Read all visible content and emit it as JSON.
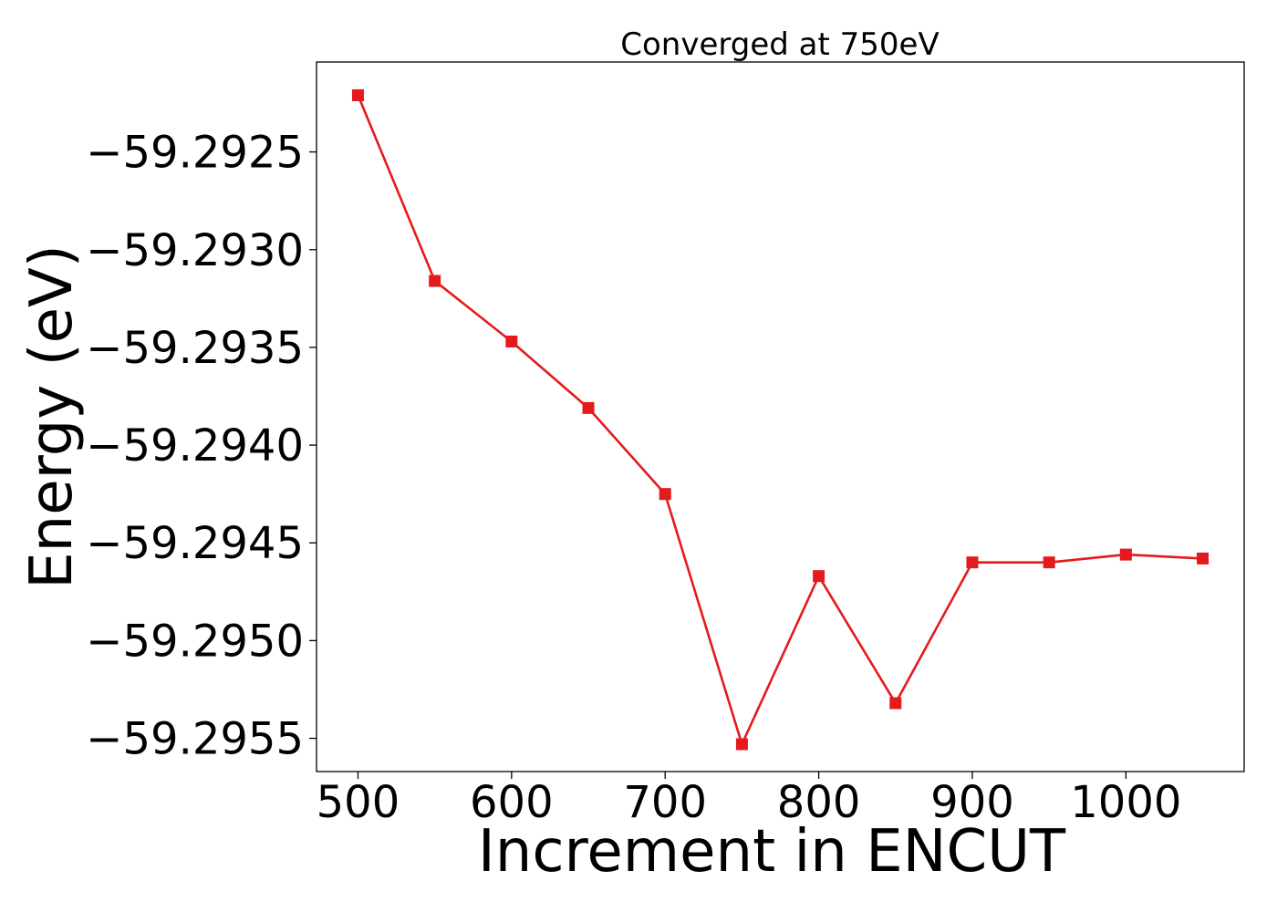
{
  "chart_data": {
    "type": "line",
    "title": "Converged at 750eV",
    "xlabel": "Increment in ENCUT",
    "ylabel": "Energy (eV)",
    "xlim": [
      473,
      1077
    ],
    "ylim": [
      -59.29567,
      -59.29204
    ],
    "xticks": [
      500,
      600,
      700,
      800,
      900,
      1000
    ],
    "xtick_labels": [
      "500",
      "600",
      "700",
      "800",
      "900",
      "1000"
    ],
    "yticks": [
      -59.2925,
      -59.293,
      -59.2935,
      -59.294,
      -59.2945,
      -59.295,
      -59.2955
    ],
    "ytick_labels": [
      "−59.2925",
      "−59.2930",
      "−59.2935",
      "−59.2940",
      "−59.2945",
      "−59.2950",
      "−59.2955"
    ],
    "grid": false,
    "series": [
      {
        "color": "#e41a1c",
        "marker": "square",
        "x": [
          500,
          550,
          600,
          650,
          700,
          750,
          800,
          850,
          900,
          950,
          1000,
          1050
        ],
        "y": [
          -59.29221,
          -59.29316,
          -59.29347,
          -59.29381,
          -59.29425,
          -59.29553,
          -59.29467,
          -59.29532,
          -59.2946,
          -59.2946,
          -59.29456,
          -59.29458
        ]
      }
    ]
  }
}
